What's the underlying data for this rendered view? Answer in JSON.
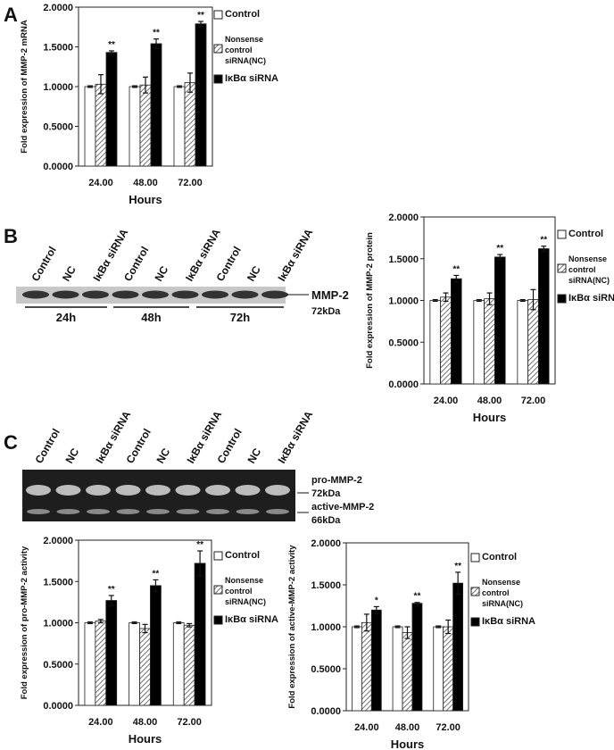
{
  "panel_labels": [
    "A",
    "B",
    "C"
  ],
  "blots": [
    {
      "lanes": [
        "Control",
        "NC",
        "IκBα siRNA",
        "Control",
        "NC",
        "IκBα siRNA",
        "Control",
        "NC",
        "IκBα siRNA"
      ],
      "times": [
        "24h",
        "48h",
        "72h"
      ],
      "markers": [
        "MMP-2",
        "72kDa"
      ]
    },
    {
      "lanes": [
        "Control",
        "NC",
        "IκBα siRNA",
        "Control",
        "NC",
        "IκBα siRNA",
        "Control",
        "NC",
        "IκBα siRNA"
      ],
      "markers": [
        "pro-MMP-2",
        "72kDa",
        "active-MMP-2",
        "66kDa"
      ]
    }
  ],
  "chart_data": [
    {
      "type": "bar",
      "x_label": "Hours",
      "y_label": "Fold expression of MMP-2 mRNA",
      "categories": [
        "24.00",
        "48.00",
        "72.00"
      ],
      "ylim": [
        0,
        2
      ],
      "yticks": [
        {
          "value": 0,
          "label": "0.0000"
        },
        {
          "value": 0.5,
          "label": "0.5000"
        },
        {
          "value": 1,
          "label": "1.0000"
        },
        {
          "value": 1.5,
          "label": "1.5000"
        },
        {
          "value": 2,
          "label": "2.0000"
        }
      ],
      "series": [
        {
          "name": "Control",
          "color": "#ffffff",
          "values": [
            1.0,
            1.0,
            1.0
          ],
          "errors": [
            0.01,
            0.01,
            0.01
          ]
        },
        {
          "name": "Nonsense control siRNA(NC)",
          "color": "#ffffff",
          "hatch": true,
          "values": [
            1.03,
            1.02,
            1.05
          ],
          "errors": [
            0.12,
            0.1,
            0.12
          ]
        },
        {
          "name": "IκBα siRNA",
          "color": "#000000",
          "values": [
            1.43,
            1.54,
            1.79
          ],
          "errors": [
            0.02,
            0.06,
            0.03
          ],
          "labels": [
            "**",
            "**",
            "**"
          ]
        }
      ]
    },
    {
      "type": "bar",
      "x_label": "Hours",
      "y_label": "Fold expression of MMP-2 protein",
      "categories": [
        "24.00",
        "48.00",
        "72.00"
      ],
      "ylim": [
        0,
        2
      ],
      "yticks": [
        {
          "value": 0,
          "label": "0.0000"
        },
        {
          "value": 0.5,
          "label": "0.5000"
        },
        {
          "value": 1,
          "label": "1.0000"
        },
        {
          "value": 1.5,
          "label": "1.5000"
        },
        {
          "value": 2,
          "label": "2.0000"
        }
      ],
      "series": [
        {
          "name": "Control",
          "color": "#ffffff",
          "values": [
            1.0,
            1.0,
            1.0
          ],
          "errors": [
            0.01,
            0.01,
            0.01
          ]
        },
        {
          "name": "Nonsense control siRNA(NC)",
          "color": "#ffffff",
          "hatch": true,
          "values": [
            1.04,
            1.02,
            1.01
          ],
          "errors": [
            0.05,
            0.07,
            0.12
          ]
        },
        {
          "name": "IκBα siRNA",
          "color": "#000000",
          "values": [
            1.26,
            1.52,
            1.62
          ],
          "errors": [
            0.04,
            0.03,
            0.03
          ],
          "labels": [
            "**",
            "**",
            "**"
          ]
        }
      ]
    },
    {
      "type": "bar",
      "x_label": "Hours",
      "y_label": "Fold expression of pro-MMP-2 activity",
      "categories": [
        "24.00",
        "48.00",
        "72.00"
      ],
      "ylim": [
        0,
        2
      ],
      "yticks": [
        {
          "value": 0,
          "label": "0.0000"
        },
        {
          "value": 0.5,
          "label": "0.5000"
        },
        {
          "value": 1,
          "label": "1.0000"
        },
        {
          "value": 1.5,
          "label": "1.5000"
        },
        {
          "value": 2,
          "label": "2.0000"
        }
      ],
      "series": [
        {
          "name": "Control",
          "color": "#ffffff",
          "values": [
            1.0,
            1.0,
            1.0
          ],
          "errors": [
            0.01,
            0.01,
            0.01
          ]
        },
        {
          "name": "Nonsense control siRNA(NC)",
          "color": "#ffffff",
          "hatch": true,
          "values": [
            1.02,
            0.93,
            0.97
          ],
          "errors": [
            0.02,
            0.05,
            0.02
          ]
        },
        {
          "name": "IκBα siRNA",
          "color": "#000000",
          "values": [
            1.27,
            1.45,
            1.72
          ],
          "errors": [
            0.06,
            0.07,
            0.15
          ],
          "labels": [
            "**",
            "**",
            "**"
          ]
        }
      ]
    },
    {
      "type": "bar",
      "x_label": "Hours",
      "y_label": "Fold expression of active-MMP-2 activity",
      "categories": [
        "24.00",
        "48.00",
        "72.00"
      ],
      "ylim": [
        0,
        2
      ],
      "yticks": [
        {
          "value": 0,
          "label": "0.0000"
        },
        {
          "value": 0.5,
          "label": "0.5000"
        },
        {
          "value": 1,
          "label": "1.0000"
        },
        {
          "value": 1.5,
          "label": "1.5000"
        },
        {
          "value": 2,
          "label": "2.0000"
        }
      ],
      "series": [
        {
          "name": "Control",
          "color": "#ffffff",
          "values": [
            1.0,
            1.0,
            1.0
          ],
          "errors": [
            0.01,
            0.01,
            0.01
          ]
        },
        {
          "name": "Nonsense control siRNA(NC)",
          "color": "#ffffff",
          "hatch": true,
          "values": [
            1.05,
            0.93,
            1.0
          ],
          "errors": [
            0.1,
            0.07,
            0.08
          ]
        },
        {
          "name": "IκBα siRNA",
          "color": "#000000",
          "values": [
            1.2,
            1.28,
            1.52
          ],
          "errors": [
            0.04,
            0.01,
            0.13
          ],
          "labels": [
            "*",
            "**",
            "**"
          ]
        }
      ]
    }
  ]
}
